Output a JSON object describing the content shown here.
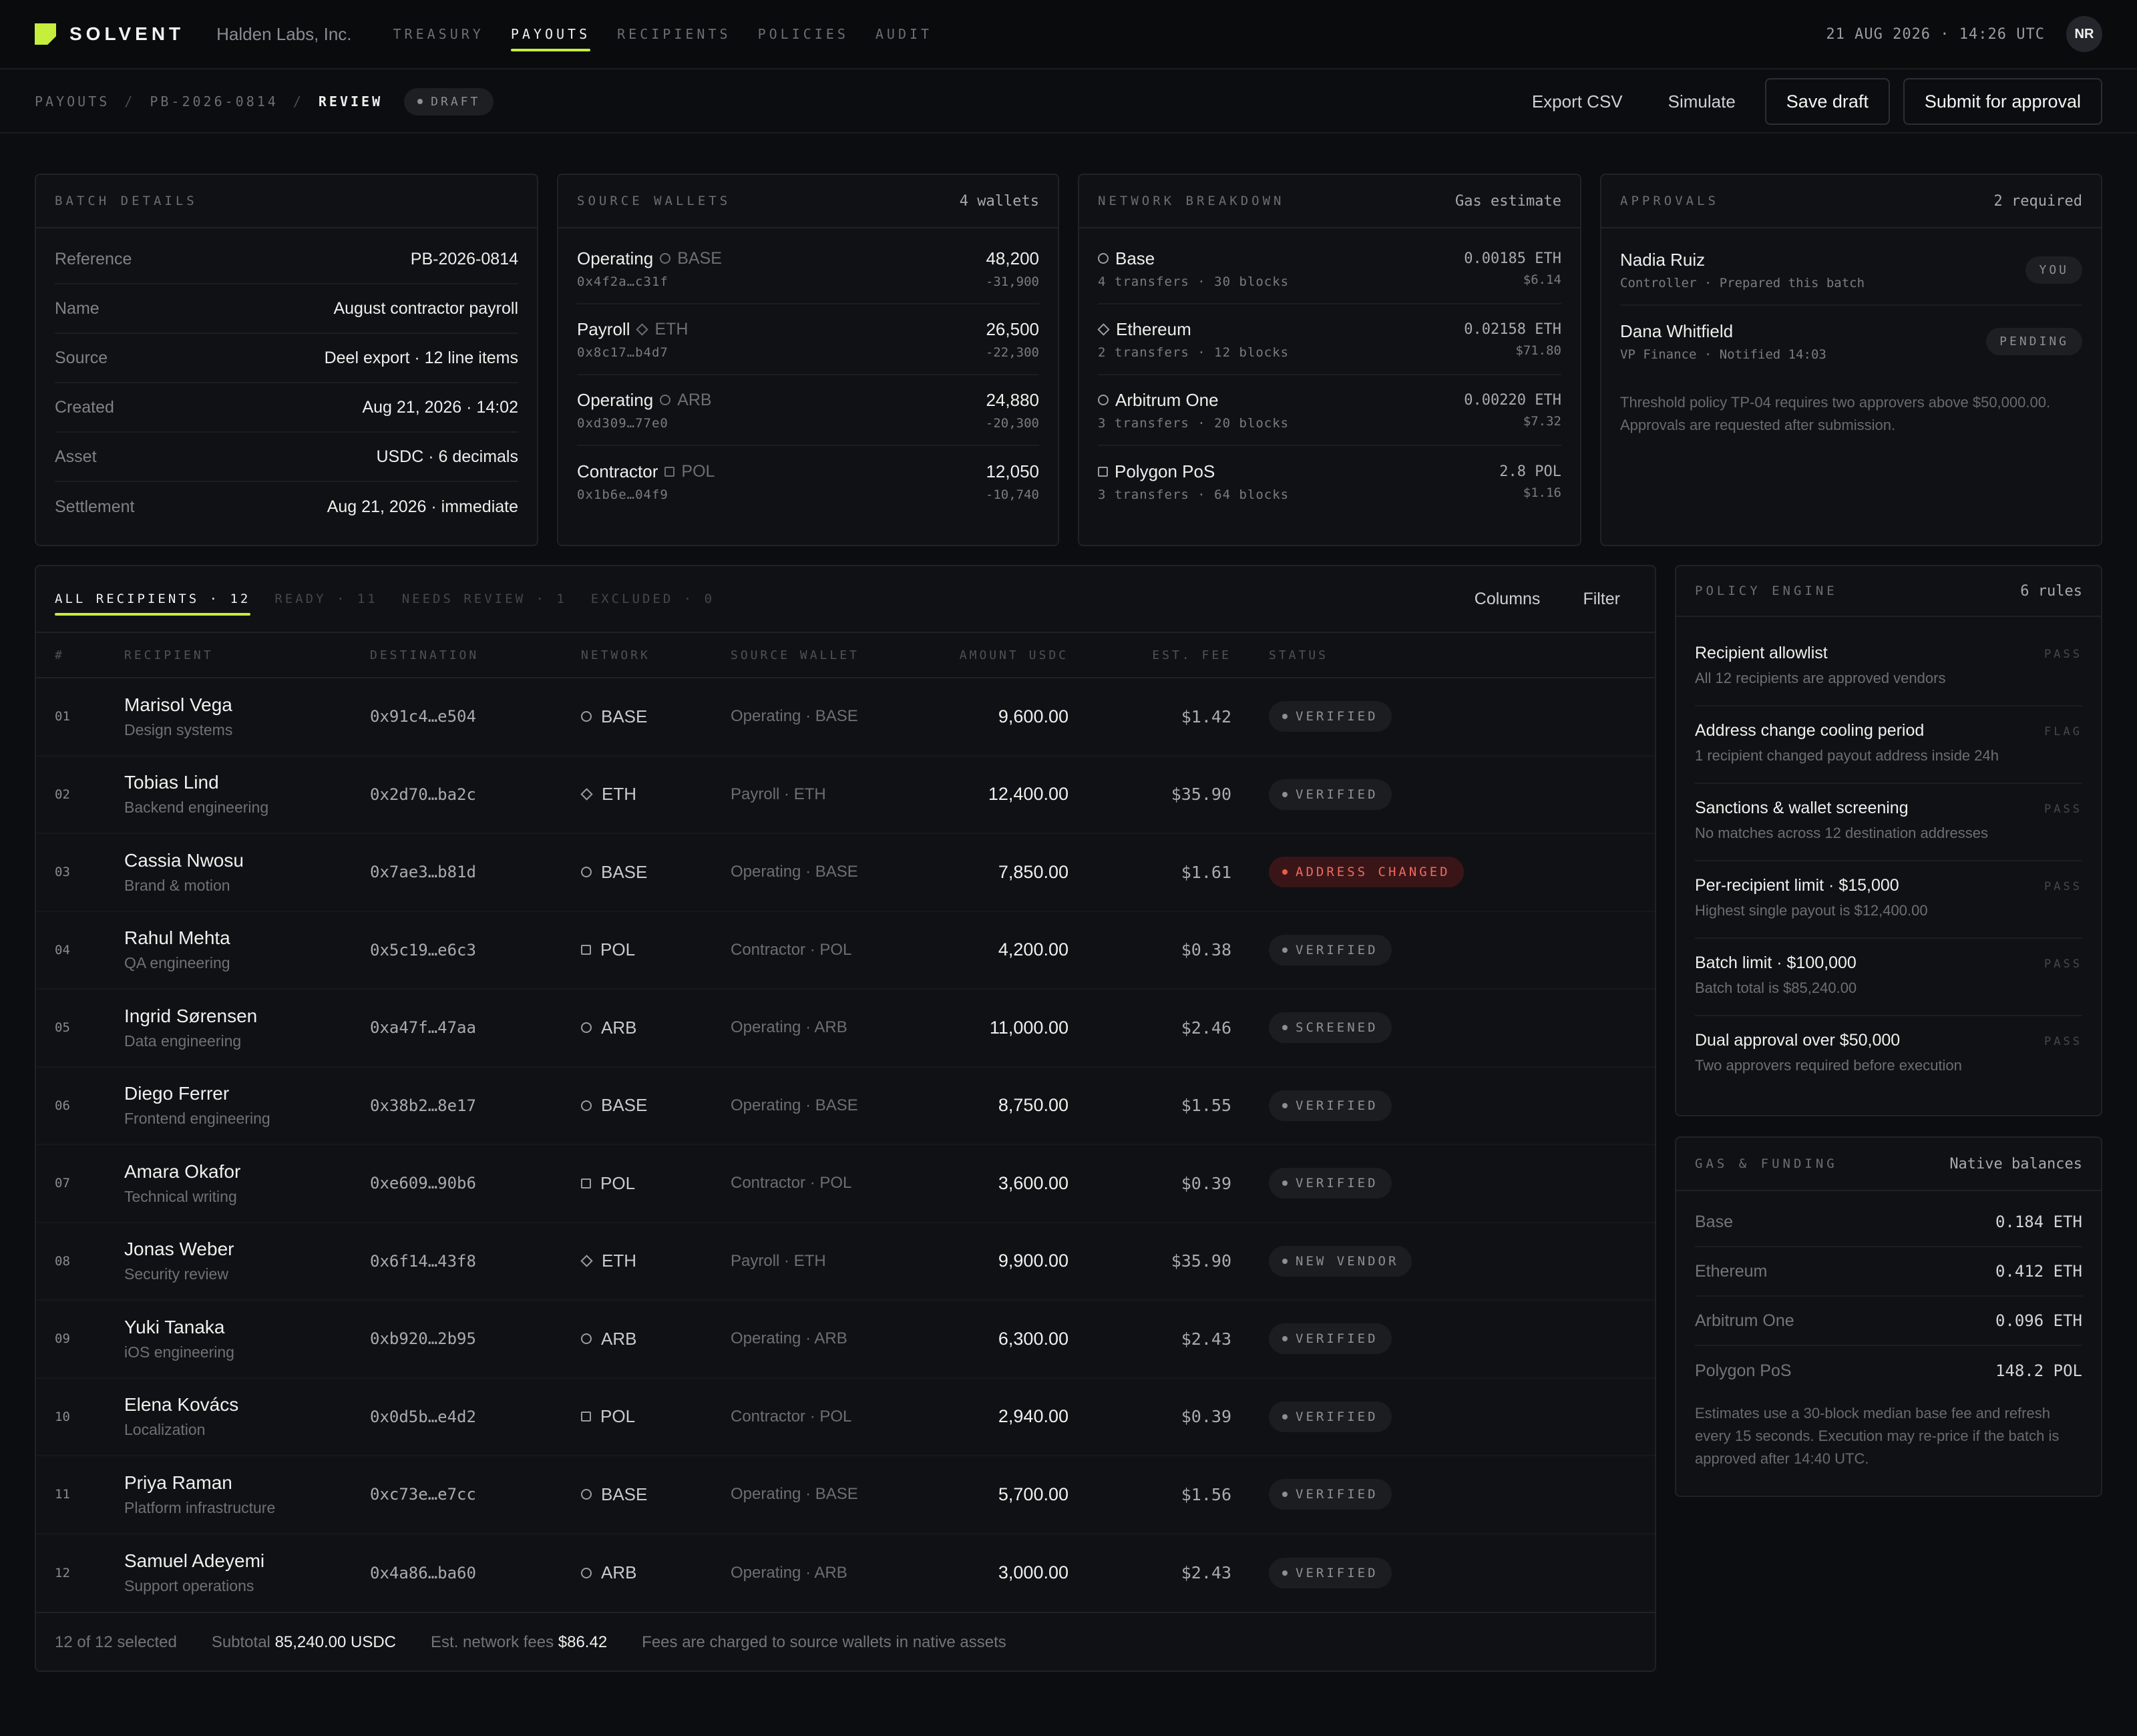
{
  "app": {
    "logo": "SOLVENT",
    "org": "Halden Labs, Inc.",
    "nav": [
      "TREASURY",
      "PAYOUTS",
      "RECIPIENTS",
      "POLICIES",
      "AUDIT"
    ],
    "clock": "21 AUG 2026 · 14:26 UTC",
    "avatar": "NR",
    "accent": "#c6ee3c"
  },
  "breadcrumb": {
    "root": "PAYOUTS",
    "batch": "PB-2026-0814",
    "current": "REVIEW",
    "badge": "DRAFT"
  },
  "actions": {
    "export": "Export CSV",
    "simulate": "Simulate",
    "save": "Save draft",
    "submit": "Submit for approval"
  },
  "batch": {
    "title": "BATCH DETAILS",
    "rows": [
      {
        "label": "Reference",
        "value": "PB-2026-0814"
      },
      {
        "label": "Name",
        "value": "August contractor payroll"
      },
      {
        "label": "Source",
        "value": "Deel export · 12 line items"
      },
      {
        "label": "Created",
        "value": "Aug 21, 2026 · 14:02"
      },
      {
        "label": "Asset",
        "value": "USDC · 6 decimals"
      },
      {
        "label": "Settlement",
        "value": "Aug 21, 2026 · immediate"
      }
    ]
  },
  "wallets": {
    "title": "SOURCE WALLETS",
    "meta": "4 wallets",
    "items": [
      {
        "name": "Operating",
        "network": "BASE",
        "icon": "circle-icon",
        "address": "0x4f2a…c31f",
        "balance": "48,200",
        "delta": "-31,900"
      },
      {
        "name": "Payroll",
        "network": "ETH",
        "icon": "diamond-icon",
        "address": "0x8c17…b4d7",
        "balance": "26,500",
        "delta": "-22,300"
      },
      {
        "name": "Operating",
        "network": "ARB",
        "icon": "circle-icon",
        "address": "0xd309…77e0",
        "balance": "24,880",
        "delta": "-20,300"
      },
      {
        "name": "Contractor",
        "network": "POL",
        "icon": "square-icon",
        "address": "0x1b6e…04f9",
        "balance": "12,050",
        "delta": "-10,740"
      }
    ]
  },
  "networks": {
    "title": "NETWORK BREAKDOWN",
    "meta": "Gas estimate",
    "items": [
      {
        "name": "Base",
        "icon": "circle-icon",
        "detail": "4 transfers · 30 blocks",
        "gas": "0.00185 ETH",
        "usd": "$6.14"
      },
      {
        "name": "Ethereum",
        "icon": "diamond-icon",
        "detail": "2 transfers · 12 blocks",
        "gas": "0.02158 ETH",
        "usd": "$71.80"
      },
      {
        "name": "Arbitrum One",
        "icon": "circle-icon",
        "detail": "3 transfers · 20 blocks",
        "gas": "0.00220 ETH",
        "usd": "$7.32"
      },
      {
        "name": "Polygon PoS",
        "icon": "square-icon",
        "detail": "3 transfers · 64 blocks",
        "gas": "2.8 POL",
        "usd": "$1.16"
      }
    ]
  },
  "approvals": {
    "title": "APPROVALS",
    "meta": "2 required",
    "items": [
      {
        "name": "Nadia Ruiz",
        "sub": "Controller · Prepared this batch",
        "badge": "YOU"
      },
      {
        "name": "Dana Whitfield",
        "sub": "VP Finance · Notified 14:03",
        "badge": "PENDING"
      }
    ],
    "note": "Threshold policy TP-04 requires two approvers above $50,000.00. Approvals are requested after submission."
  },
  "recipients": {
    "tabs": [
      "ALL RECIPIENTS · 12",
      "READY · 11",
      "NEEDS REVIEW · 1",
      "EXCLUDED · 0"
    ],
    "columns_button": "Columns",
    "filter_button": "Filter",
    "headers": [
      "#",
      "RECIPIENT",
      "DESTINATION",
      "NETWORK",
      "SOURCE WALLET",
      "AMOUNT USDC",
      "EST. FEE",
      "STATUS"
    ],
    "rows": [
      {
        "idx": "01",
        "name": "Marisol Vega",
        "role": "Design systems",
        "dest": "0x91c4…e504",
        "net": "BASE",
        "icon": "circle-icon",
        "src": "Operating · BASE",
        "amount": "9,600.00",
        "fee": "$1.42",
        "status": "VERIFIED",
        "alert": false
      },
      {
        "idx": "02",
        "name": "Tobias Lind",
        "role": "Backend engineering",
        "dest": "0x2d70…ba2c",
        "net": "ETH",
        "icon": "diamond-icon",
        "src": "Payroll · ETH",
        "amount": "12,400.00",
        "fee": "$35.90",
        "status": "VERIFIED",
        "alert": false
      },
      {
        "idx": "03",
        "name": "Cassia Nwosu",
        "role": "Brand & motion",
        "dest": "0x7ae3…b81d",
        "net": "BASE",
        "icon": "circle-icon",
        "src": "Operating · BASE",
        "amount": "7,850.00",
        "fee": "$1.61",
        "status": "ADDRESS CHANGED",
        "alert": true
      },
      {
        "idx": "04",
        "name": "Rahul Mehta",
        "role": "QA engineering",
        "dest": "0x5c19…e6c3",
        "net": "POL",
        "icon": "square-icon",
        "src": "Contractor · POL",
        "amount": "4,200.00",
        "fee": "$0.38",
        "status": "VERIFIED",
        "alert": false
      },
      {
        "idx": "05",
        "name": "Ingrid Sørensen",
        "role": "Data engineering",
        "dest": "0xa47f…47aa",
        "net": "ARB",
        "icon": "circle-icon",
        "src": "Operating · ARB",
        "amount": "11,000.00",
        "fee": "$2.46",
        "status": "SCREENED",
        "alert": false
      },
      {
        "idx": "06",
        "name": "Diego Ferrer",
        "role": "Frontend engineering",
        "dest": "0x38b2…8e17",
        "net": "BASE",
        "icon": "circle-icon",
        "src": "Operating · BASE",
        "amount": "8,750.00",
        "fee": "$1.55",
        "status": "VERIFIED",
        "alert": false
      },
      {
        "idx": "07",
        "name": "Amara Okafor",
        "role": "Technical writing",
        "dest": "0xe609…90b6",
        "net": "POL",
        "icon": "square-icon",
        "src": "Contractor · POL",
        "amount": "3,600.00",
        "fee": "$0.39",
        "status": "VERIFIED",
        "alert": false
      },
      {
        "idx": "08",
        "name": "Jonas Weber",
        "role": "Security review",
        "dest": "0x6f14…43f8",
        "net": "ETH",
        "icon": "diamond-icon",
        "src": "Payroll · ETH",
        "amount": "9,900.00",
        "fee": "$35.90",
        "status": "NEW VENDOR",
        "alert": false
      },
      {
        "idx": "09",
        "name": "Yuki Tanaka",
        "role": "iOS engineering",
        "dest": "0xb920…2b95",
        "net": "ARB",
        "icon": "circle-icon",
        "src": "Operating · ARB",
        "amount": "6,300.00",
        "fee": "$2.43",
        "status": "VERIFIED",
        "alert": false
      },
      {
        "idx": "10",
        "name": "Elena Kovács",
        "role": "Localization",
        "dest": "0x0d5b…e4d2",
        "net": "POL",
        "icon": "square-icon",
        "src": "Contractor · POL",
        "amount": "2,940.00",
        "fee": "$0.39",
        "status": "VERIFIED",
        "alert": false
      },
      {
        "idx": "11",
        "name": "Priya Raman",
        "role": "Platform infrastructure",
        "dest": "0xc73e…e7cc",
        "net": "BASE",
        "icon": "circle-icon",
        "src": "Operating · BASE",
        "amount": "5,700.00",
        "fee": "$1.56",
        "status": "VERIFIED",
        "alert": false
      },
      {
        "idx": "12",
        "name": "Samuel Adeyemi",
        "role": "Support operations",
        "dest": "0x4a86…ba60",
        "net": "ARB",
        "icon": "circle-icon",
        "src": "Operating · ARB",
        "amount": "3,000.00",
        "fee": "$2.43",
        "status": "VERIFIED",
        "alert": false
      }
    ],
    "footer": {
      "selected": "12 of 12 selected",
      "subtotal_label": "Subtotal",
      "subtotal_value": "85,240.00 USDC",
      "fees_label": "Est. network fees",
      "fees_value": "$86.42",
      "note": "Fees are charged to source wallets in native assets"
    }
  },
  "policy": {
    "title": "POLICY ENGINE",
    "meta": "6 rules",
    "rules": [
      {
        "name": "Recipient allowlist",
        "desc": "All 12 recipients are approved vendors",
        "result": "PASS"
      },
      {
        "name": "Address change cooling period",
        "desc": "1 recipient changed payout address inside 24h",
        "result": "FLAG"
      },
      {
        "name": "Sanctions & wallet screening",
        "desc": "No matches across 12 destination addresses",
        "result": "PASS"
      },
      {
        "name": "Per-recipient limit · $15,000",
        "desc": "Highest single payout is $12,400.00",
        "result": "PASS"
      },
      {
        "name": "Batch limit · $100,000",
        "desc": "Batch total is $85,240.00",
        "result": "PASS"
      },
      {
        "name": "Dual approval over $50,000",
        "desc": "Two approvers required before execution",
        "result": "PASS"
      }
    ]
  },
  "gas": {
    "title": "GAS & FUNDING",
    "meta": "Native balances",
    "rows": [
      {
        "label": "Base",
        "value": "0.184 ETH"
      },
      {
        "label": "Ethereum",
        "value": "0.412 ETH"
      },
      {
        "label": "Arbitrum One",
        "value": "0.096 ETH"
      },
      {
        "label": "Polygon PoS",
        "value": "148.2 POL"
      }
    ],
    "note": "Estimates use a 30-block median base fee and refresh every 15 seconds. Execution may re-price if the batch is approved after 14:40 UTC."
  }
}
